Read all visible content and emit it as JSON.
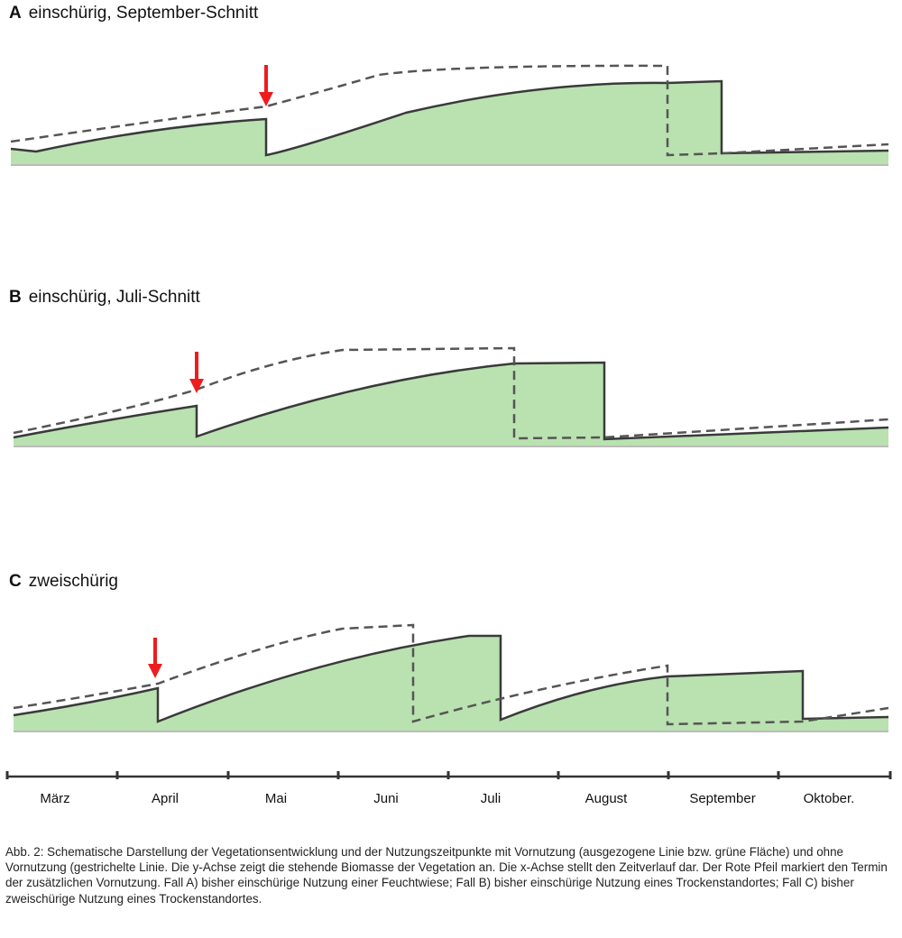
{
  "panels": [
    {
      "letter": "A",
      "title": "einschürig, September-Schnitt"
    },
    {
      "letter": "B",
      "title": "einschürig, Juli-Schnitt"
    },
    {
      "letter": "C",
      "title": "zweischürig"
    }
  ],
  "months": [
    "März",
    "April",
    "Mai",
    "Juni",
    "Juli",
    "August",
    "September",
    "Oktober."
  ],
  "caption": "Abb. 2: Schematische Darstellung der Vegetationsentwicklung und der Nutzungszeitpunkte mit Vornutzung (ausgezogene Linie bzw. grüne Fläche) und ohne Vornutzung (gestrichelte Linie. Die y-Achse zeigt die stehende Biomasse der Vegetation an. Die x-Achse stellt den Zeitverlauf dar. Der Rote Pfeil markiert den Termin der zusätzlichen Vornutzung. Fall A) bisher einschürige Nutzung einer Feuchtwiese; Fall B) bisher einschürige Nutzung eines Trockenstandortes; Fall C) bisher zweischürige Nutzung eines Trockenstandortes.",
  "colors": {
    "fill": "#b9e2b0",
    "line": "#3a3a3a",
    "arrow": "#ee1c1c"
  }
}
